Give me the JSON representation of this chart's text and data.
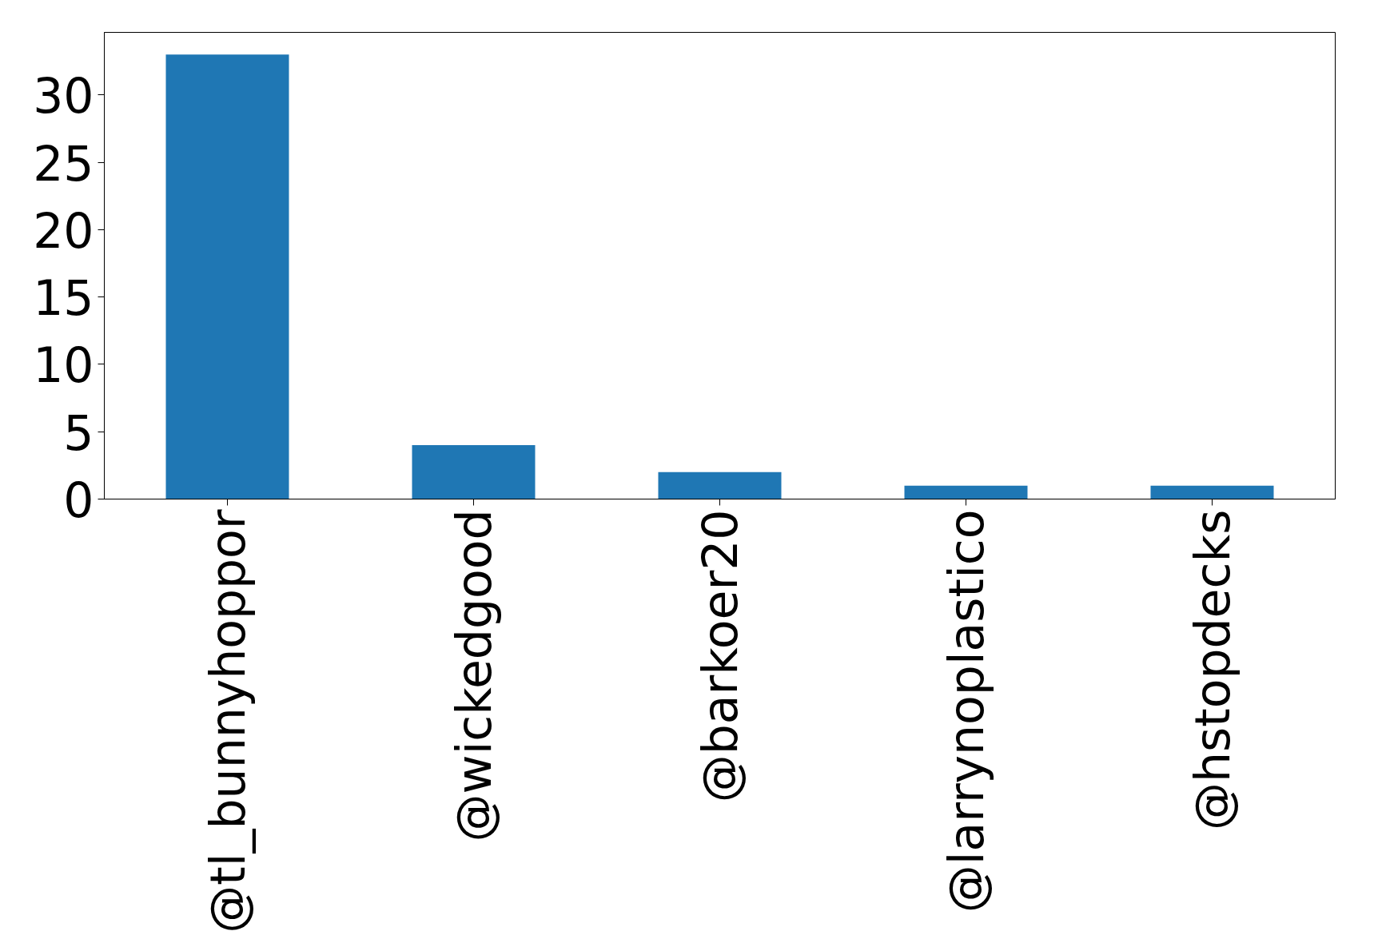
{
  "chart_data": {
    "type": "bar",
    "categories": [
      "@tl_bunnyhoppor",
      "@wickedgood",
      "@barkoer20",
      "@larrynoplastico",
      "@hstopdecks"
    ],
    "values": [
      33,
      4,
      2,
      1,
      1
    ],
    "color": "#1f77b4",
    "ylim": [
      0,
      34.65
    ],
    "yticks": [
      0,
      5,
      10,
      15,
      20,
      25,
      30
    ]
  }
}
